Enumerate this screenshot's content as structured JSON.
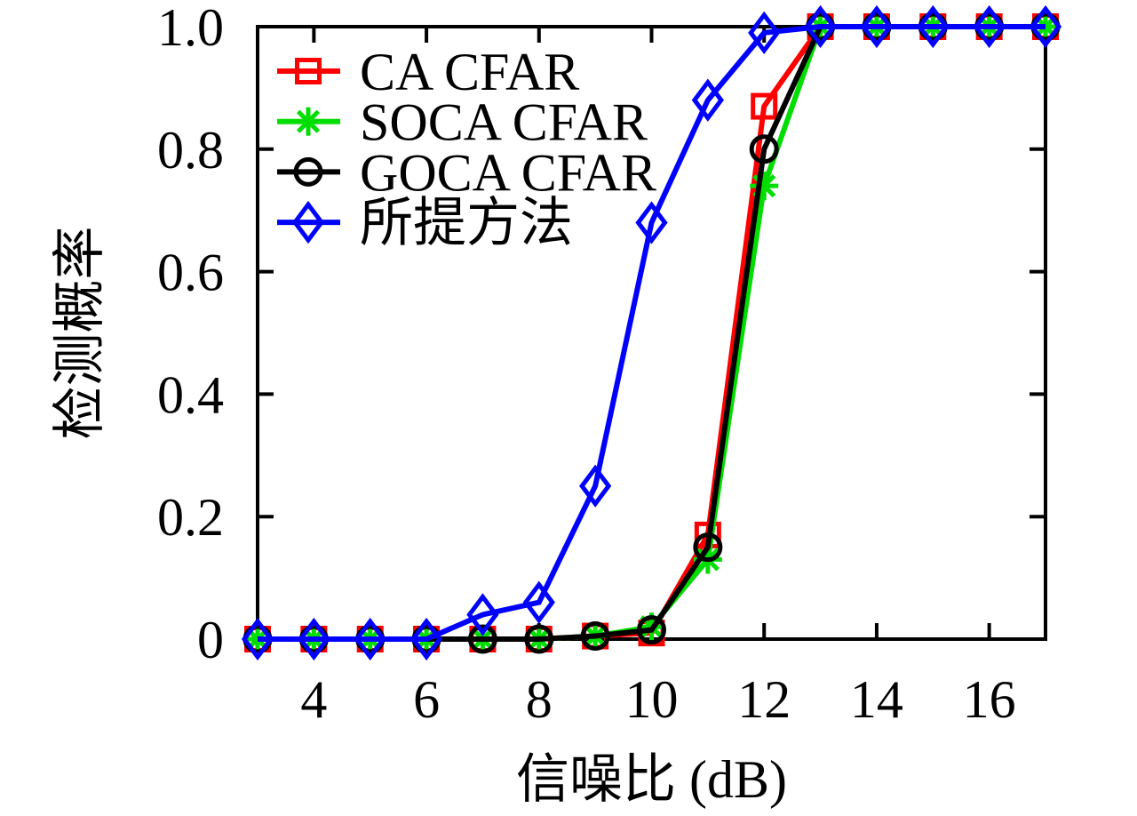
{
  "chart_data": {
    "type": "line",
    "title": "",
    "xlabel": "信噪比 (dB)",
    "ylabel": "检测概率",
    "x": [
      3,
      4,
      5,
      6,
      7,
      8,
      9,
      10,
      11,
      12,
      13,
      14,
      15,
      16,
      17
    ],
    "xlim": [
      3,
      17
    ],
    "ylim": [
      0,
      1
    ],
    "xticks": [
      4,
      6,
      8,
      10,
      12,
      14,
      16
    ],
    "xtick_labels": [
      "4",
      "6",
      "8",
      "10",
      "12",
      "14",
      "16"
    ],
    "yticks": [
      0,
      0.2,
      0.4,
      0.6,
      0.8,
      1.0
    ],
    "ytick_labels": [
      "0",
      "0.2",
      "0.4",
      "0.6",
      "0.8",
      "1.0"
    ],
    "grid": false,
    "legend_position": "top-left",
    "axis_color": "#000000",
    "background_color": "#ffffff",
    "series": [
      {
        "name": "CA CFAR",
        "color": "#ff0000",
        "marker": "square",
        "values": [
          0,
          0,
          0,
          0,
          0,
          0,
          0.005,
          0.01,
          0.17,
          0.87,
          1,
          1,
          1,
          1,
          1
        ]
      },
      {
        "name": "SOCA CFAR",
        "color": "#00dd00",
        "marker": "asterisk",
        "values": [
          0,
          0,
          0,
          0,
          0,
          0,
          0.005,
          0.02,
          0.13,
          0.74,
          1,
          1,
          1,
          1,
          1
        ]
      },
      {
        "name": "GOCA CFAR",
        "color": "#000000",
        "marker": "circle",
        "values": [
          0,
          0,
          0,
          0,
          0,
          0,
          0.005,
          0.015,
          0.15,
          0.8,
          1,
          1,
          1,
          1,
          1
        ]
      },
      {
        "name": "所提方法",
        "color": "#0000ff",
        "marker": "diamond",
        "values": [
          0,
          0,
          0,
          0,
          0.04,
          0.06,
          0.25,
          0.68,
          0.88,
          0.99,
          1,
          1,
          1,
          1,
          1
        ]
      }
    ]
  }
}
